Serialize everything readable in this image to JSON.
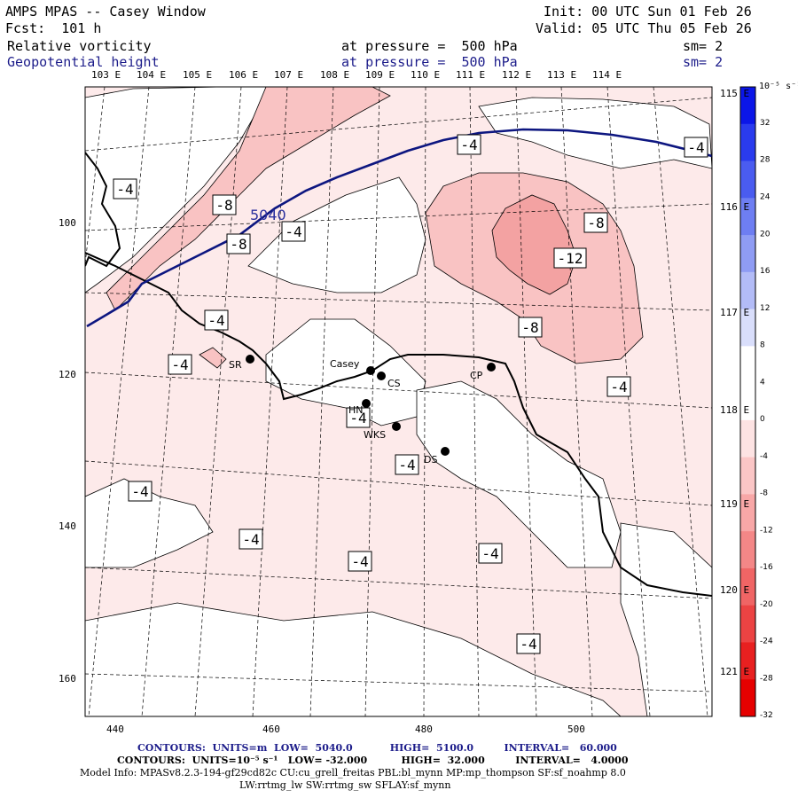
{
  "header": {
    "title": "AMPS MPAS -- Casey Window",
    "forecast": "Fcst:  101 h",
    "init": "Init: 00 UTC Sun 01 Feb 26",
    "valid": "Valid: 05 UTC Thu 05 Feb 26",
    "field1_name": "Relative vorticity",
    "field1_level": "at pressure =  500 hPa",
    "field1_smooth": "sm= 2",
    "field2_name": "Geopotential height",
    "field2_level": "at pressure =  500 hPa",
    "field2_smooth": "sm= 2"
  },
  "longitude_labels": [
    "103 E",
    "104 E",
    "105 E",
    "106 E",
    "107 E",
    "108 E",
    "109 E",
    "110 E",
    "111 E",
    "112 E",
    "113 E",
    "114 E"
  ],
  "right_longitude_labels": [
    "115 E",
    "116 E",
    "117 E",
    "118 E",
    "119 E",
    "120 E",
    "121 E"
  ],
  "x_axis_ticks": [
    "440",
    "460",
    "480",
    "500"
  ],
  "y_axis_ticks": [
    "100",
    "120",
    "140",
    "160"
  ],
  "colorbar": {
    "units_label": "10⁻⁵ s⁻¹",
    "tick_labels": [
      "32",
      "28",
      "24",
      "20",
      "16",
      "12",
      "8",
      "4",
      "0",
      "-4",
      "-8",
      "-12",
      "-16",
      "-20",
      "-24",
      "-28",
      "-32"
    ],
    "colors": [
      "#0b16e8",
      "#2a3bee",
      "#4a5cf0",
      "#6e7ef2",
      "#8f9cf4",
      "#b3bcf7",
      "#d9defb",
      "#ffffff",
      "#ffffff",
      "#fde3e3",
      "#fbc6c6",
      "#f8a7a7",
      "#f48787",
      "#f06565",
      "#ec4343",
      "#e82020",
      "#e60000"
    ]
  },
  "contour_labels": {
    "height_5040": "5040",
    "vort": [
      "-4",
      "-8",
      "-8",
      "-4",
      "-4",
      "-4",
      "-8",
      "-12",
      "-8",
      "-4",
      "-4",
      "-4",
      "-4",
      "-4",
      "-4",
      "-4",
      "-4",
      "-4",
      "-4"
    ]
  },
  "stations": [
    {
      "code": "SR"
    },
    {
      "code": "Casey"
    },
    {
      "code": "CS"
    },
    {
      "code": "CP"
    },
    {
      "code": "HN"
    },
    {
      "code": "WKS"
    },
    {
      "code": "DS"
    }
  ],
  "footer": {
    "contours_height": "CONTOURS:  UNITS=m  LOW=  5040.0           HIGH=  5100.0         INTERVAL=   60.000",
    "contours_vort": "CONTOURS:  UNITS=10⁻⁵ s⁻¹   LOW= -32.000          HIGH=  32.000         INTERVAL=   4.0000",
    "model_info_1": "Model Info: MPASv8.2.3-194-gf29cd82c CU:cu_grell_freitas PBL:bl_mynn MP:mp_thompson SF:sf_noahmp 8.0",
    "model_info_2": "LW:rrtmg_lw SW:rrtmg_sw SFLAY:sf_mynn"
  }
}
